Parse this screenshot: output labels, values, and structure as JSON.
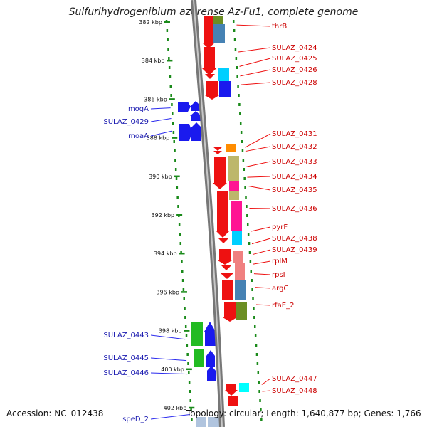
{
  "title": "Sulfurihydrogenibium azorense Az-Fu1, complete genome",
  "footer": {
    "accession": "Accession: NC_012438",
    "topology": "Topology: circular; Length: 1,640,877 bp; Genes: 1,766"
  },
  "colors": {
    "forward": "#2a2aee",
    "reverse": "#ee1111",
    "ticks": "#1a8a1a",
    "backbone": "#888888"
  },
  "ticks": [
    {
      "label": "382 kbp",
      "y": 382
    },
    {
      "label": "384 kbp",
      "y": 384
    },
    {
      "label": "386 kbp",
      "y": 386
    },
    {
      "label": "388 kbp",
      "y": 388
    },
    {
      "label": "390 kbp",
      "y": 390
    },
    {
      "label": "392 kbp",
      "y": 392
    },
    {
      "label": "394 kbp",
      "y": 394
    },
    {
      "label": "396 kbp",
      "y": 396
    },
    {
      "label": "398 kbp",
      "y": 398
    },
    {
      "label": "400 kbp",
      "y": 400
    },
    {
      "label": "402 kbp",
      "y": 402
    }
  ],
  "genes_right": [
    {
      "name": "thrB",
      "start": 382.0,
      "end": 382.3
    },
    {
      "name": "SULAZ_0424",
      "start": 383.2,
      "end": 383.9
    },
    {
      "name": "SULAZ_0425",
      "start": 384.0,
      "end": 384.6
    },
    {
      "name": "SULAZ_0426",
      "start": 384.6,
      "end": 385.0
    },
    {
      "name": "SULAZ_0428",
      "start": 385.0,
      "end": 385.5
    },
    {
      "name": "SULAZ_0431",
      "start": 388.4,
      "end": 388.6
    },
    {
      "name": "SULAZ_0432",
      "start": 388.6,
      "end": 388.8
    },
    {
      "name": "SULAZ_0433",
      "start": 389.2,
      "end": 389.8
    },
    {
      "name": "SULAZ_0434",
      "start": 389.8,
      "end": 390.3
    },
    {
      "name": "SULAZ_0435",
      "start": 390.3,
      "end": 390.7
    },
    {
      "name": "SULAZ_0436",
      "start": 390.8,
      "end": 392.5
    },
    {
      "name": "pyrF",
      "start": 392.5,
      "end": 393.2
    },
    {
      "name": "SULAZ_0438",
      "start": 393.2,
      "end": 393.8
    },
    {
      "name": "SULAZ_0439",
      "start": 393.8,
      "end": 394.3
    },
    {
      "name": "rplM",
      "start": 394.3,
      "end": 394.8
    },
    {
      "name": "rpsI",
      "start": 394.8,
      "end": 395.3
    },
    {
      "name": "argC",
      "start": 395.3,
      "end": 396.2
    },
    {
      "name": "rfaE_2",
      "start": 396.2,
      "end": 397.1
    },
    {
      "name": "SULAZ_0447",
      "start": 400.6,
      "end": 401.0
    },
    {
      "name": "SULAZ_0448",
      "start": 401.0,
      "end": 401.3
    }
  ],
  "genes_left": [
    {
      "name": "mogA",
      "start": 386.2,
      "end": 386.7
    },
    {
      "name": "SULAZ_0429",
      "start": 386.8,
      "end": 387.2
    },
    {
      "name": "moaA",
      "start": 387.2,
      "end": 388.1
    },
    {
      "name": "SULAZ_0443",
      "start": 397.8,
      "end": 399.1
    },
    {
      "name": "SULAZ_0445",
      "start": 399.2,
      "end": 399.9
    },
    {
      "name": "SULAZ_0446",
      "start": 399.9,
      "end": 400.6
    },
    {
      "name": "speD_2",
      "start": 402.1,
      "end": 402.6
    }
  ]
}
